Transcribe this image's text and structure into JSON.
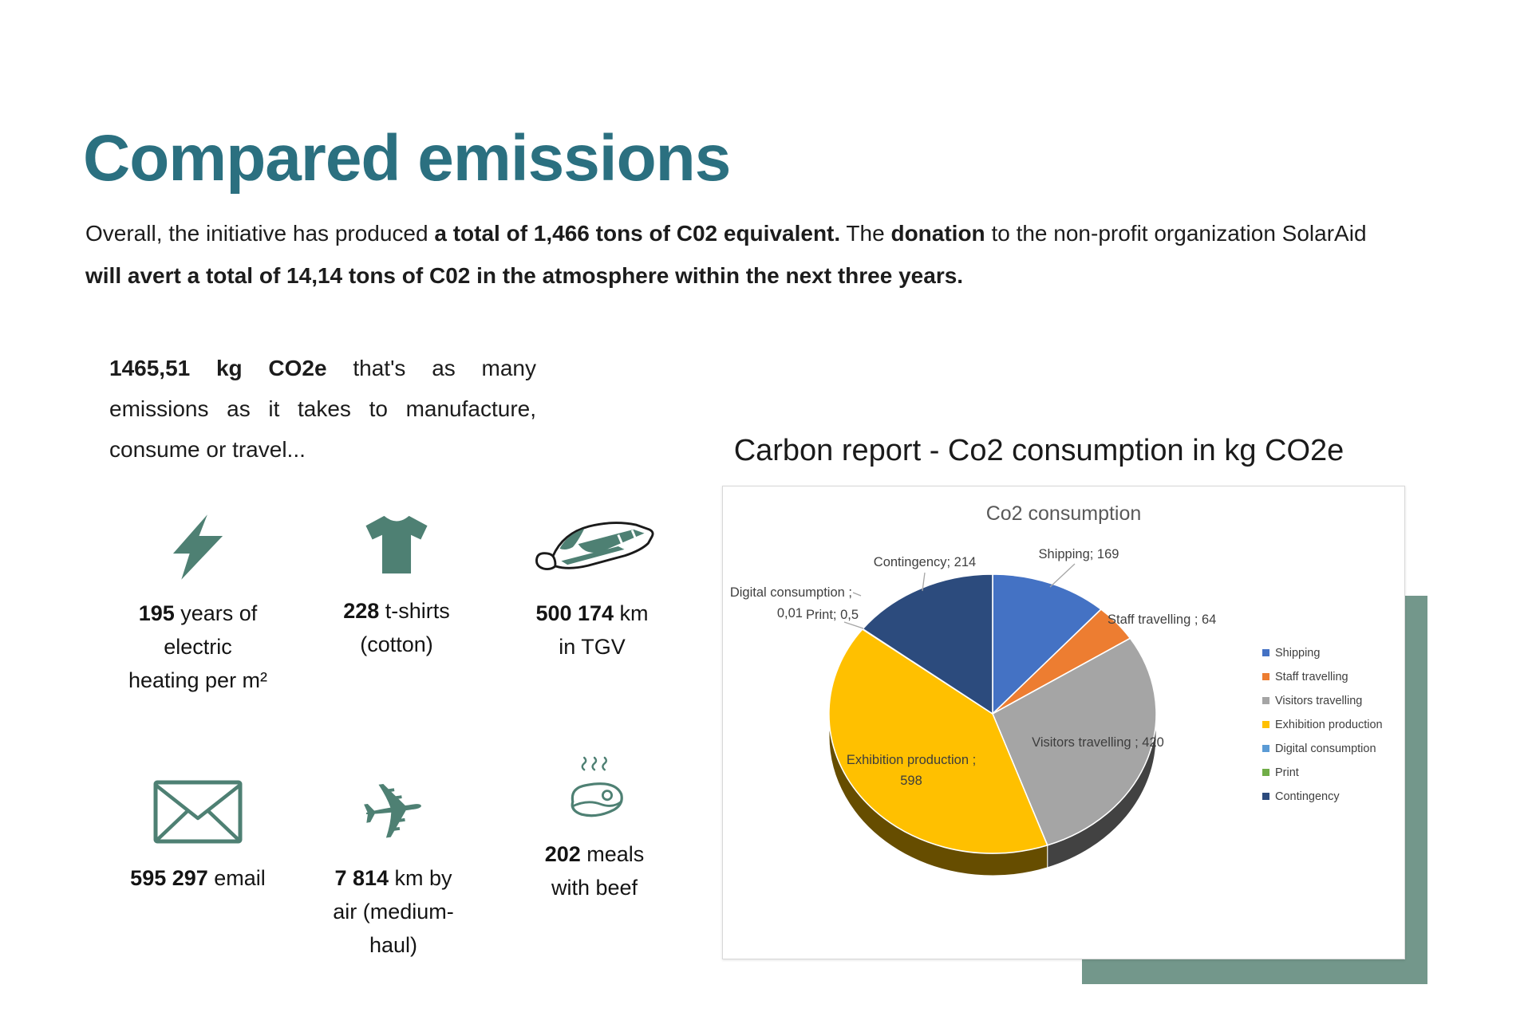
{
  "page": {
    "title": "Compared emissions",
    "intro": {
      "s1": "Overall, the initiative has produced ",
      "b1": "a total of 1,466 tons of C02 equivalent.",
      "s2": " The ",
      "b2": "donation",
      "s3": " to the non-profit organization SolarAid ",
      "b3": "will avert a total of 14,14 tons of C02 in the atmosphere within the next three years."
    }
  },
  "equivalents": {
    "intro": {
      "bold": "1465,51 kg CO2e",
      "rest": " that's as many emissions as it takes to manufacture, consume or travel..."
    },
    "items": [
      {
        "icon": "lightning-icon",
        "value": "195",
        "label": " years of electric heating per m²"
      },
      {
        "icon": "tshirt-icon",
        "value": "228",
        "label": " t-shirts (cotton)"
      },
      {
        "icon": "train-icon",
        "value": "500 174",
        "label": " km in TGV"
      },
      {
        "icon": "envelope-icon",
        "value": "595 297",
        "label": " email"
      },
      {
        "icon": "plane-icon",
        "value": "7 814",
        "label": " km by air (medium-haul)"
      },
      {
        "icon": "steak-icon",
        "value": "202",
        "label": " meals with beef"
      }
    ]
  },
  "chart_section": {
    "heading": "Carbon report - Co2 consumption in kg CO2e"
  },
  "chart_data": {
    "type": "pie",
    "style": "3d-exploded-none",
    "title": "Co2 consumption",
    "unit": "kg CO2e",
    "labels": [
      "Shipping",
      "Staff travelling",
      "Visitors travelling",
      "Exhibition production",
      "Digital consumption",
      "Print",
      "Contingency"
    ],
    "values": [
      169,
      64,
      420,
      598,
      0.01,
      0.5,
      214
    ],
    "total": 1465.51,
    "colors": [
      "#4472C4",
      "#ED7D31",
      "#A5A5A5",
      "#FFC000",
      "#5B9BD5",
      "#70AD47",
      "#2C4B7D"
    ],
    "legend_position": "right",
    "callouts": {
      "contingency": "Contingency; 214",
      "shipping": "Shipping; 169",
      "staff": "Staff travelling ; 64",
      "visitors": "Visitors travelling ; 420",
      "exhibition_line1": "Exhibition production ;",
      "exhibition_line2": "598",
      "digital_line1": "Digital consumption ;",
      "digital_line2": "0,01",
      "print": "Print; 0,5"
    }
  }
}
